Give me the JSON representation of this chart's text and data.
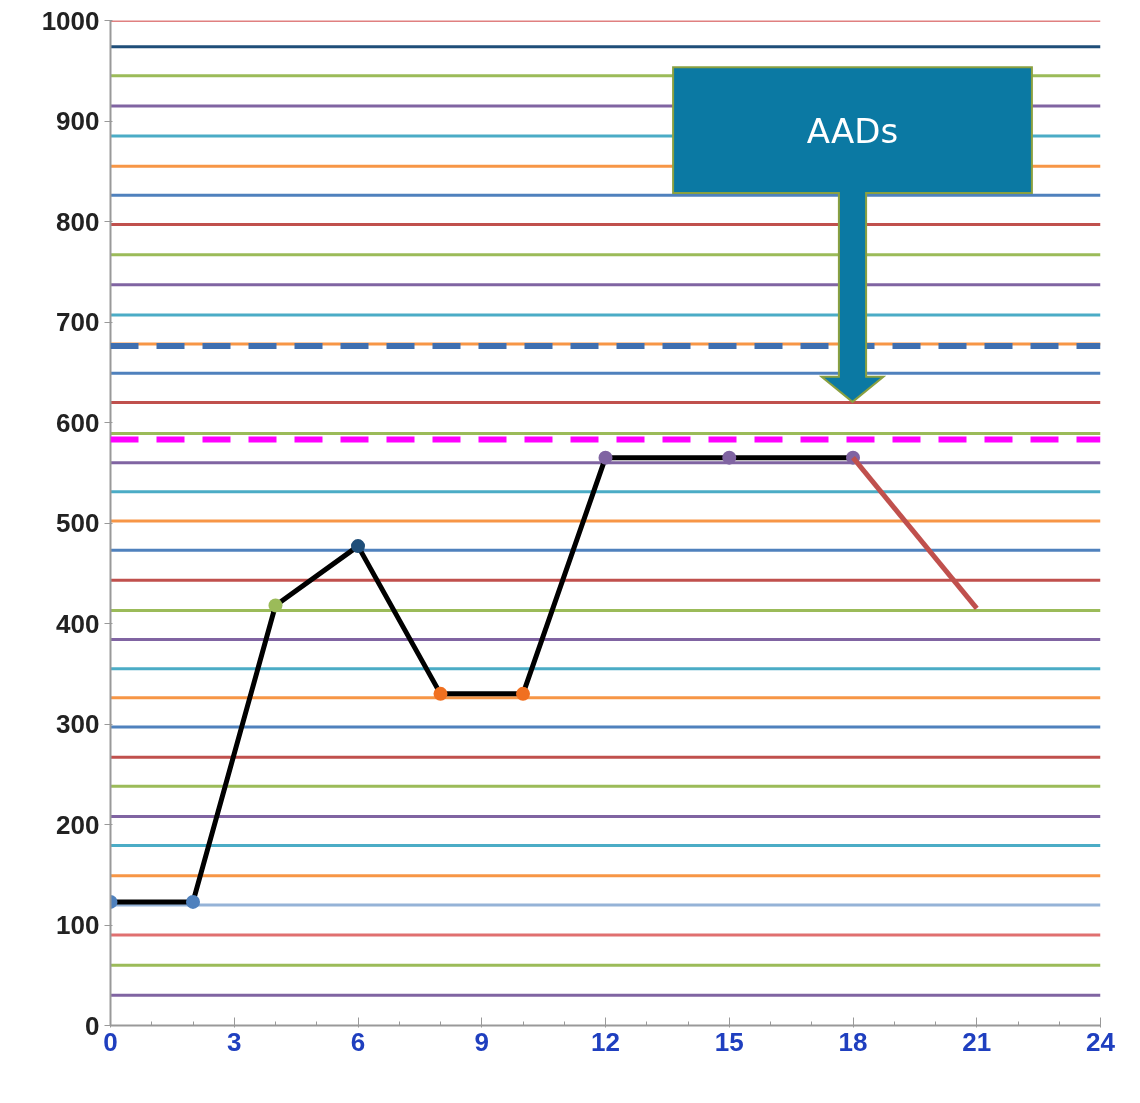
{
  "chart_data": {
    "type": "line",
    "x": [
      0,
      2,
      4,
      6,
      8,
      10,
      12,
      15,
      18
    ],
    "series": [
      {
        "color": "#000000",
        "values": [
          123,
          123,
          418,
          477,
          330,
          330,
          565,
          565,
          565
        ],
        "colors": [
          "#4f81bd",
          "#4f81bd",
          "#9bbb59",
          "#1f4e79",
          "#f07020",
          "#f07020",
          "#8064a2",
          "#8064a2",
          "#8064a2"
        ]
      },
      {
        "color": "#c0504d",
        "x": [
          18,
          21
        ],
        "values": [
          565,
          415
        ],
        "marker": "none"
      }
    ],
    "marker": "circle",
    "line_style": "solid",
    "xlim": [
      0,
      24
    ],
    "ylim": [
      0,
      1000
    ],
    "xticks": [
      0,
      3,
      6,
      9,
      12,
      15,
      18,
      21,
      24
    ],
    "yticks": [
      0,
      100,
      200,
      300,
      400,
      500,
      600,
      700,
      800,
      900,
      1000
    ],
    "grid": false,
    "annotations": [
      "AADs"
    ],
    "ref_lines": [
      {
        "axis": "y",
        "value": 676,
        "color": "#3f6fb0",
        "line_style": "dashed"
      },
      {
        "axis": "y",
        "value": 583,
        "color": "#ff00ff",
        "line_style": "dashed"
      },
      {
        "axis": "y",
        "value": 30,
        "color": "#8064a2"
      },
      {
        "axis": "y",
        "value": 60,
        "color": "#9bbb59"
      },
      {
        "axis": "y",
        "value": 90,
        "color": "#e07070"
      },
      {
        "axis": "y",
        "value": 120,
        "color": "#95b3d7"
      },
      {
        "axis": "y",
        "value": 149,
        "color": "#f79646"
      },
      {
        "axis": "y",
        "value": 179,
        "color": "#4bacc6"
      },
      {
        "axis": "y",
        "value": 208,
        "color": "#8064a2"
      },
      {
        "axis": "y",
        "value": 238,
        "color": "#9bbb59"
      },
      {
        "axis": "y",
        "value": 267,
        "color": "#c0504d"
      },
      {
        "axis": "y",
        "value": 297,
        "color": "#4f81bd"
      },
      {
        "axis": "y",
        "value": 326,
        "color": "#f79646"
      },
      {
        "axis": "y",
        "value": 355,
        "color": "#4bacc6"
      },
      {
        "axis": "y",
        "value": 384,
        "color": "#8064a2"
      },
      {
        "axis": "y",
        "value": 413,
        "color": "#9bbb59"
      },
      {
        "axis": "y",
        "value": 443,
        "color": "#c0504d"
      },
      {
        "axis": "y",
        "value": 473,
        "color": "#4f81bd"
      },
      {
        "axis": "y",
        "value": 502,
        "color": "#f79646"
      },
      {
        "axis": "y",
        "value": 531,
        "color": "#4bacc6"
      },
      {
        "axis": "y",
        "value": 560,
        "color": "#8064a2"
      },
      {
        "axis": "y",
        "value": 589,
        "color": "#9bbb59"
      },
      {
        "axis": "y",
        "value": 620,
        "color": "#c0504d"
      },
      {
        "axis": "y",
        "value": 649,
        "color": "#4f81bd"
      },
      {
        "axis": "y",
        "value": 678,
        "color": "#f79646"
      },
      {
        "axis": "y",
        "value": 707,
        "color": "#4bacc6"
      },
      {
        "axis": "y",
        "value": 737,
        "color": "#8064a2"
      },
      {
        "axis": "y",
        "value": 767,
        "color": "#9bbb59"
      },
      {
        "axis": "y",
        "value": 797,
        "color": "#c0504d"
      },
      {
        "axis": "y",
        "value": 826,
        "color": "#4f81bd"
      },
      {
        "axis": "y",
        "value": 855,
        "color": "#f79646"
      },
      {
        "axis": "y",
        "value": 885,
        "color": "#4bacc6"
      },
      {
        "axis": "y",
        "value": 915,
        "color": "#8064a2"
      },
      {
        "axis": "y",
        "value": 945,
        "color": "#9bbb59"
      },
      {
        "axis": "y",
        "value": 974,
        "color": "#1f4e79"
      },
      {
        "axis": "y",
        "value": 1000,
        "color": "#e08080"
      }
    ]
  }
}
